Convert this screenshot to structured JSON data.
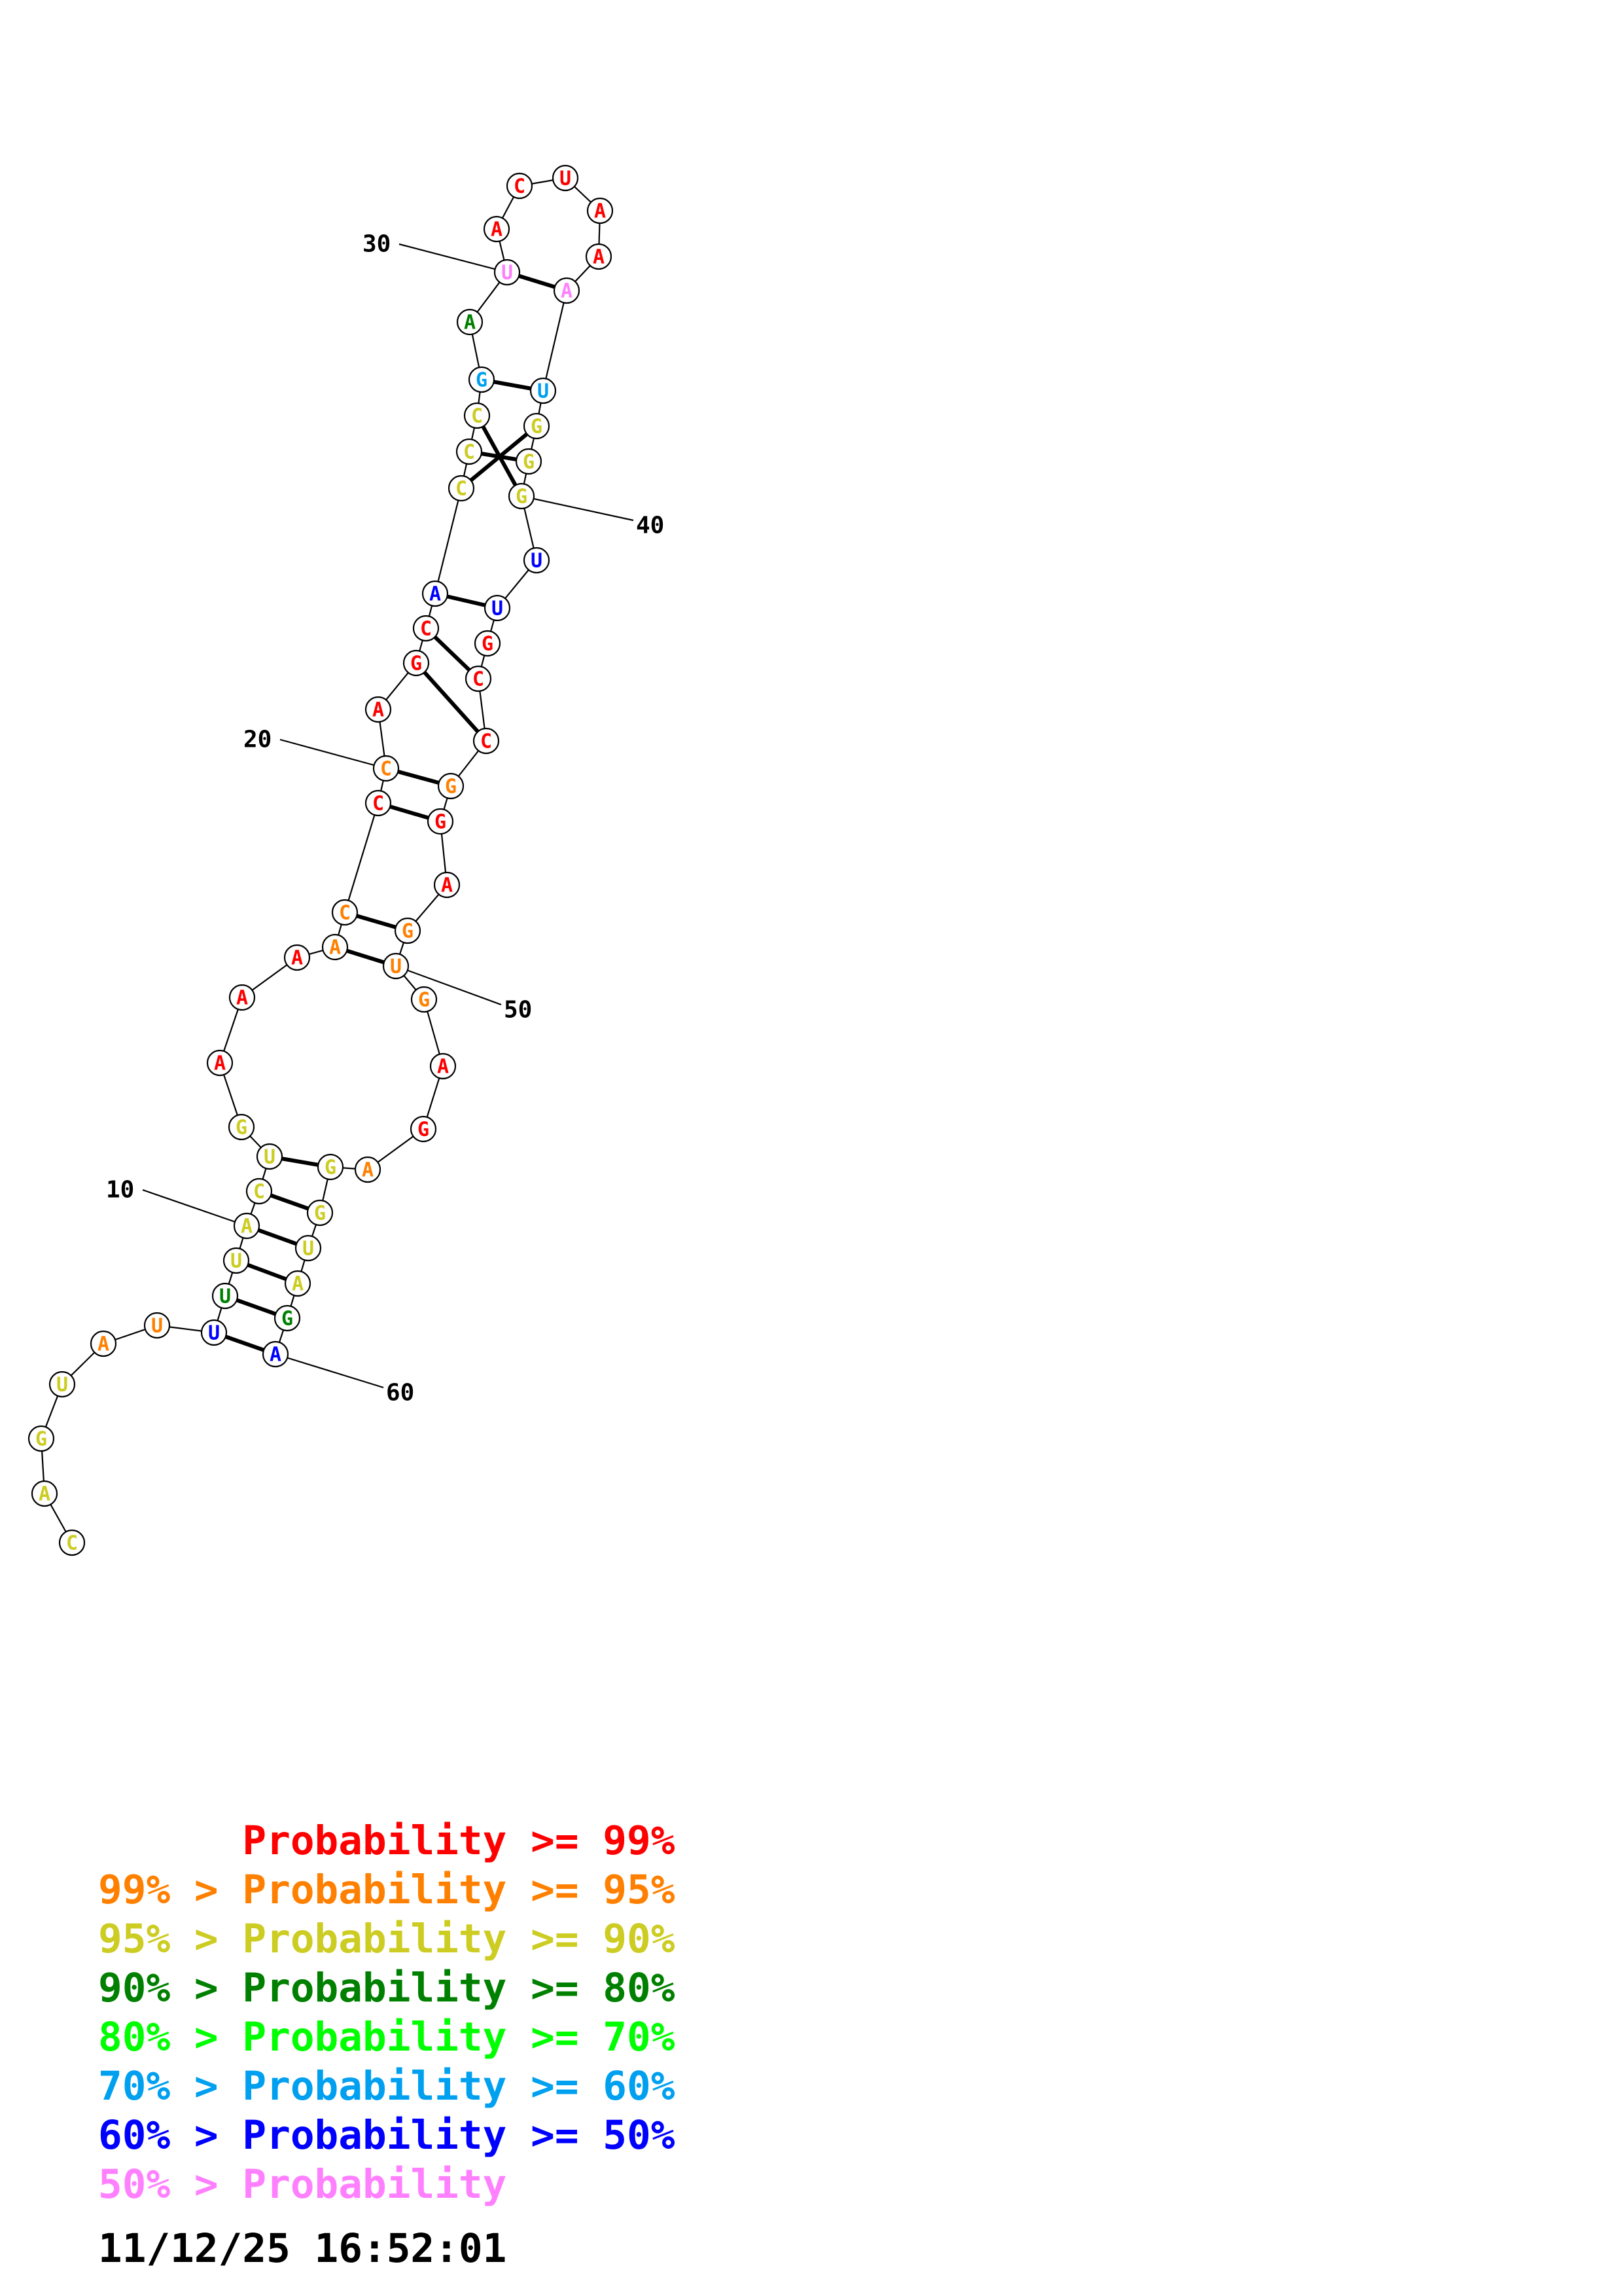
{
  "colors": {
    "c99": "#ff0000",
    "c95": "#ff8000",
    "c90": "#cccc22",
    "c80": "#008000",
    "c70": "#00ff00",
    "c60": "#00a0f0",
    "c50": "#0000ff",
    "cLow": "#ff80ff"
  },
  "sequence": [
    {
      "n": 1,
      "base": "C",
      "color": "c90"
    },
    {
      "n": 2,
      "base": "A",
      "color": "c90"
    },
    {
      "n": 3,
      "base": "G",
      "color": "c90"
    },
    {
      "n": 4,
      "base": "U",
      "color": "c90"
    },
    {
      "n": 5,
      "base": "A",
      "color": "c95"
    },
    {
      "n": 6,
      "base": "U",
      "color": "c95"
    },
    {
      "n": 7,
      "base": "U",
      "color": "c50"
    },
    {
      "n": 8,
      "base": "U",
      "color": "c80"
    },
    {
      "n": 9,
      "base": "U",
      "color": "c90"
    },
    {
      "n": 10,
      "base": "A",
      "color": "c90"
    },
    {
      "n": 11,
      "base": "C",
      "color": "c90"
    },
    {
      "n": 12,
      "base": "U",
      "color": "c90"
    },
    {
      "n": 13,
      "base": "G",
      "color": "c90"
    },
    {
      "n": 14,
      "base": "A",
      "color": "c99"
    },
    {
      "n": 15,
      "base": "A",
      "color": "c99"
    },
    {
      "n": 16,
      "base": "A",
      "color": "c99"
    },
    {
      "n": 17,
      "base": "A",
      "color": "c95"
    },
    {
      "n": 18,
      "base": "C",
      "color": "c95"
    },
    {
      "n": 19,
      "base": "C",
      "color": "c99"
    },
    {
      "n": 20,
      "base": "C",
      "color": "c95"
    },
    {
      "n": 21,
      "base": "A",
      "color": "c99"
    },
    {
      "n": 22,
      "base": "G",
      "color": "c99"
    },
    {
      "n": 23,
      "base": "C",
      "color": "c99"
    },
    {
      "n": 24,
      "base": "A",
      "color": "c50"
    },
    {
      "n": 25,
      "base": "C",
      "color": "c90"
    },
    {
      "n": 26,
      "base": "C",
      "color": "c90"
    },
    {
      "n": 27,
      "base": "C",
      "color": "c90"
    },
    {
      "n": 28,
      "base": "G",
      "color": "c60"
    },
    {
      "n": 29,
      "base": "A",
      "color": "c80"
    },
    {
      "n": 30,
      "base": "U",
      "color": "cLow"
    },
    {
      "n": 31,
      "base": "A",
      "color": "c99"
    },
    {
      "n": 32,
      "base": "C",
      "color": "c99"
    },
    {
      "n": 33,
      "base": "U",
      "color": "c99"
    },
    {
      "n": 34,
      "base": "A",
      "color": "c99"
    },
    {
      "n": 35,
      "base": "A",
      "color": "c99"
    },
    {
      "n": 36,
      "base": "A",
      "color": "cLow"
    },
    {
      "n": 37,
      "base": "U",
      "color": "c60"
    },
    {
      "n": 38,
      "base": "G",
      "color": "c90"
    },
    {
      "n": 39,
      "base": "G",
      "color": "c90"
    },
    {
      "n": 40,
      "base": "G",
      "color": "c90"
    },
    {
      "n": 41,
      "base": "U",
      "color": "c50"
    },
    {
      "n": 42,
      "base": "U",
      "color": "c50"
    },
    {
      "n": 43,
      "base": "G",
      "color": "c99"
    },
    {
      "n": 44,
      "base": "C",
      "color": "c99"
    },
    {
      "n": 45,
      "base": "C",
      "color": "c99"
    },
    {
      "n": 46,
      "base": "G",
      "color": "c95"
    },
    {
      "n": 47,
      "base": "G",
      "color": "c99"
    },
    {
      "n": 48,
      "base": "A",
      "color": "c99"
    },
    {
      "n": 49,
      "base": "G",
      "color": "c95"
    },
    {
      "n": 50,
      "base": "U",
      "color": "c95"
    },
    {
      "n": 51,
      "base": "G",
      "color": "c95"
    },
    {
      "n": 52,
      "base": "A",
      "color": "c99"
    },
    {
      "n": 53,
      "base": "G",
      "color": "c99"
    },
    {
      "n": 54,
      "base": "A",
      "color": "c95"
    },
    {
      "n": 55,
      "base": "G",
      "color": "c90"
    },
    {
      "n": 56,
      "base": "G",
      "color": "c90"
    },
    {
      "n": 57,
      "base": "U",
      "color": "c90"
    },
    {
      "n": 58,
      "base": "A",
      "color": "c90"
    },
    {
      "n": 59,
      "base": "G",
      "color": "c80"
    },
    {
      "n": 60,
      "base": "A",
      "color": "c50"
    }
  ],
  "pairs": [
    [
      7,
      60
    ],
    [
      8,
      59
    ],
    [
      9,
      58
    ],
    [
      10,
      57
    ],
    [
      11,
      56
    ],
    [
      12,
      55
    ],
    [
      17,
      50
    ],
    [
      18,
      49
    ],
    [
      19,
      47
    ],
    [
      20,
      46
    ],
    [
      22,
      45
    ],
    [
      23,
      44
    ],
    [
      24,
      42
    ],
    [
      27,
      40
    ],
    [
      26,
      39
    ],
    [
      25,
      38
    ],
    [
      28,
      37
    ],
    [
      30,
      36
    ]
  ],
  "position_labels": [
    {
      "n": 10,
      "text": "10"
    },
    {
      "n": 20,
      "text": "20"
    },
    {
      "n": 30,
      "text": "30"
    },
    {
      "n": 40,
      "text": "40"
    },
    {
      "n": 50,
      "text": "50"
    },
    {
      "n": 60,
      "text": "60"
    }
  ],
  "legend": [
    {
      "prefix": "",
      "label": "Probability",
      "suffix": ">= 99%",
      "color": "c99"
    },
    {
      "prefix": "99% >",
      "label": "Probability",
      "suffix": ">= 95%",
      "color": "c95"
    },
    {
      "prefix": "95% >",
      "label": "Probability",
      "suffix": ">= 90%",
      "color": "c90"
    },
    {
      "prefix": "90% >",
      "label": "Probability",
      "suffix": ">= 80%",
      "color": "c80"
    },
    {
      "prefix": "80% >",
      "label": "Probability",
      "suffix": ">= 70%",
      "color": "c70"
    },
    {
      "prefix": "70% >",
      "label": "Probability",
      "suffix": ">= 60%",
      "color": "c60"
    },
    {
      "prefix": "60% >",
      "label": "Probability",
      "suffix": ">= 50%",
      "color": "c50"
    },
    {
      "prefix": "50% >",
      "label": "Probability",
      "suffix": "",
      "color": "cLow"
    }
  ],
  "timestamp": "11/12/25 16:52:01"
}
